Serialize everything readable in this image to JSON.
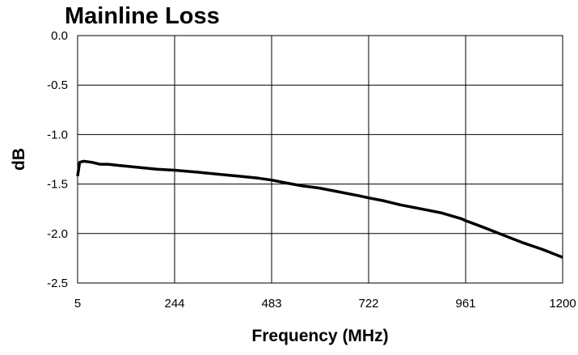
{
  "chart_data": {
    "type": "line",
    "title": "Mainline Loss",
    "xlabel": "Frequency (MHz)",
    "ylabel": "dB",
    "xlim": [
      5,
      1200
    ],
    "ylim": [
      -2.5,
      0.0
    ],
    "x_ticks": [
      5,
      244,
      483,
      722,
      961,
      1200
    ],
    "x_tick_labels": [
      "5",
      "244",
      "483",
      "722",
      "961",
      "1200"
    ],
    "y_ticks": [
      0.0,
      -0.5,
      -1.0,
      -1.5,
      -2.0,
      -2.5
    ],
    "y_tick_labels": [
      "0.0",
      "-0.5",
      "-1.0",
      "-1.5",
      "-2.0",
      "-2.5"
    ],
    "grid": true,
    "legend": "none",
    "series": [
      {
        "color": "#000000",
        "x": [
          5,
          10,
          20,
          40,
          60,
          80,
          100,
          150,
          200,
          244,
          300,
          350,
          400,
          450,
          483,
          520,
          560,
          600,
          650,
          700,
          722,
          760,
          800,
          850,
          900,
          950,
          961,
          1000,
          1050,
          1100,
          1150,
          1200
        ],
        "y": [
          -1.42,
          -1.28,
          -1.27,
          -1.28,
          -1.3,
          -1.3,
          -1.31,
          -1.33,
          -1.35,
          -1.36,
          -1.38,
          -1.4,
          -1.42,
          -1.44,
          -1.46,
          -1.49,
          -1.52,
          -1.54,
          -1.58,
          -1.62,
          -1.64,
          -1.67,
          -1.71,
          -1.75,
          -1.79,
          -1.85,
          -1.87,
          -1.93,
          -2.01,
          -2.09,
          -2.16,
          -2.24
        ]
      }
    ]
  }
}
